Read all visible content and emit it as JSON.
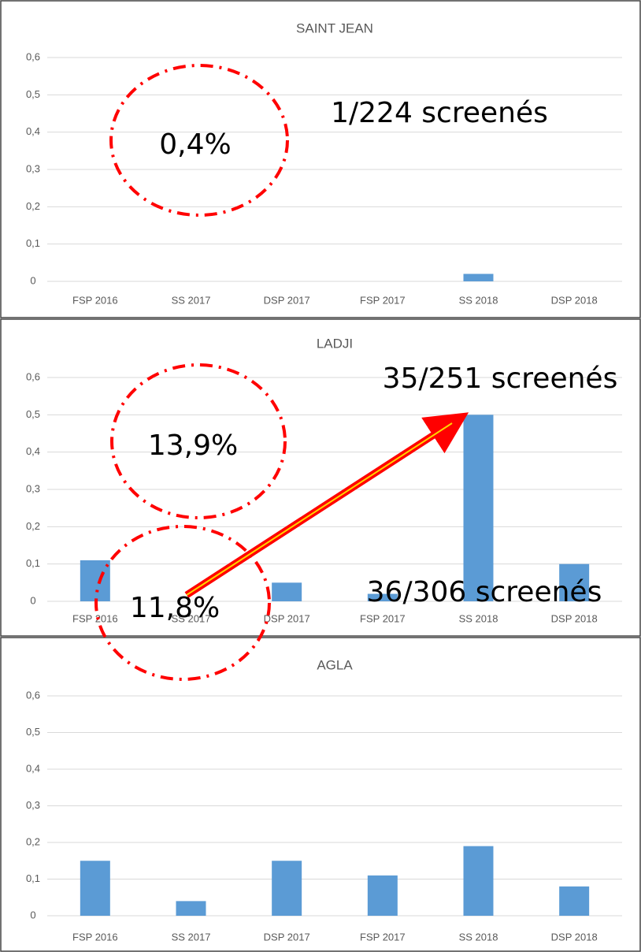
{
  "chart_data": [
    {
      "type": "bar",
      "title": "SAINT JEAN",
      "color": "#5b9bd5",
      "categories": [
        "FSP 2016",
        "SS 2017",
        "DSP 2017",
        "FSP 2017",
        "SS 2018",
        "DSP 2018"
      ],
      "values": [
        0,
        0,
        0,
        0,
        0.02,
        0
      ],
      "ylim": [
        0,
        0.6
      ],
      "yticks": [
        0,
        {
          "value": 0.1,
          "label": "0,1"
        },
        {
          "value": 0.2,
          "label": "0,2"
        },
        {
          "value": 0.3,
          "label": "0,3"
        },
        {
          "value": 0.4,
          "label": "0,4"
        },
        {
          "value": 0.5,
          "label": "0,5"
        },
        {
          "value": 0.6,
          "label": "0,6"
        }
      ],
      "grid": true,
      "annotations": [
        "0,4%",
        "1/224 screenés"
      ]
    },
    {
      "type": "bar",
      "title": "LADJI",
      "color": "#5b9bd5",
      "categories": [
        "FSP 2016",
        "SS 2017",
        "DSP 2017",
        "FSP 2017",
        "SS 2018",
        "DSP 2018"
      ],
      "values": [
        0.11,
        0,
        0.05,
        0.02,
        0.5,
        0.1
      ],
      "ylim": [
        0,
        0.6
      ],
      "yticks": [
        0,
        {
          "value": 0.1,
          "label": "0,1"
        },
        {
          "value": 0.2,
          "label": "0,2"
        },
        {
          "value": 0.3,
          "label": "0,3"
        },
        {
          "value": 0.4,
          "label": "0,4"
        },
        {
          "value": 0.5,
          "label": "0,5"
        },
        {
          "value": 0.6,
          "label": "0,6"
        }
      ],
      "grid": true,
      "annotations": [
        "13,9%",
        "35/251 screenés"
      ]
    },
    {
      "type": "bar",
      "title": "AGLA",
      "color": "#5b9bd5",
      "categories": [
        "FSP 2016",
        "SS 2017",
        "DSP 2017",
        "FSP 2017",
        "SS 2018",
        "DSP 2018"
      ],
      "values": [
        0.15,
        0.04,
        0.15,
        0.11,
        0.19,
        0.08
      ],
      "ylim": [
        0,
        0.6
      ],
      "yticks": [
        0,
        {
          "value": 0.1,
          "label": "0,1"
        },
        {
          "value": 0.2,
          "label": "0,2"
        },
        {
          "value": 0.3,
          "label": "0,3"
        },
        {
          "value": 0.4,
          "label": "0,4"
        },
        {
          "value": 0.5,
          "label": "0,5"
        },
        {
          "value": 0.6,
          "label": "0,6"
        }
      ],
      "grid": true,
      "annotations": [
        "11,8%",
        "36/306 screenés"
      ]
    }
  ]
}
